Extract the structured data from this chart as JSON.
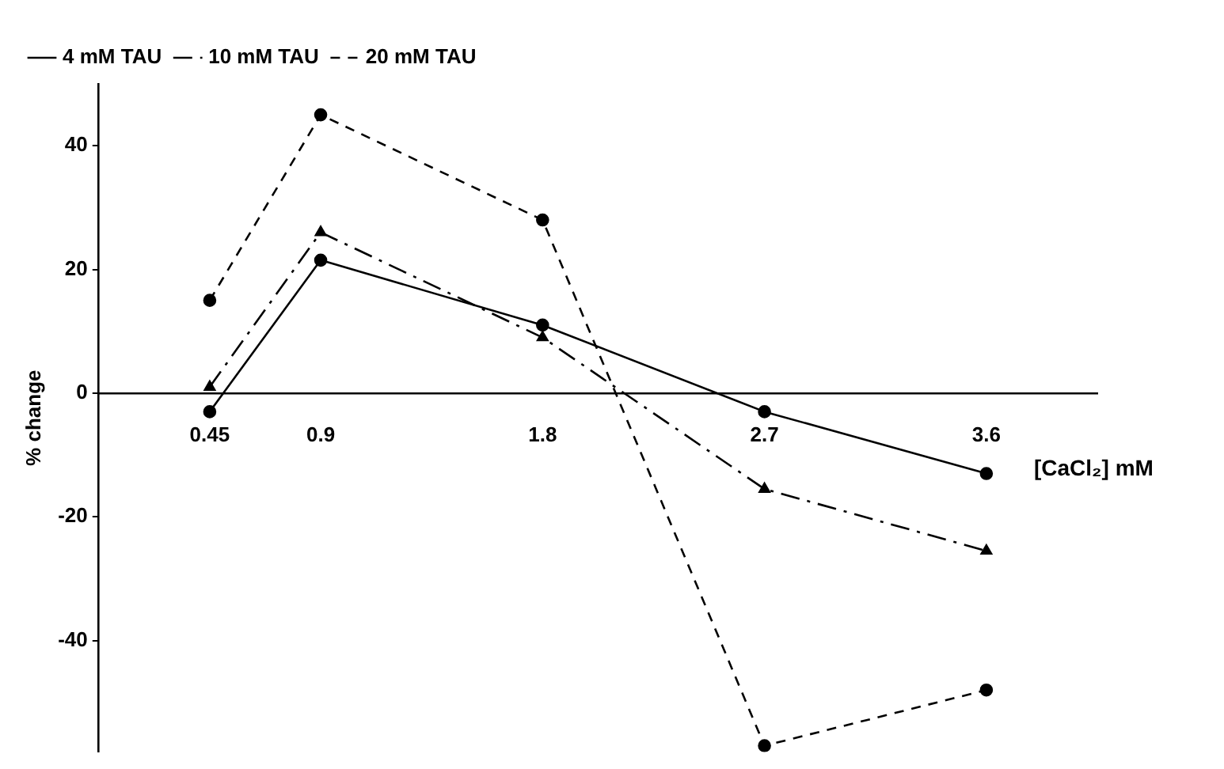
{
  "chart_data": {
    "type": "line",
    "ylabel": "% change",
    "xlabel": "[CaCl₂] mM",
    "x": [
      0.45,
      0.9,
      1.8,
      2.7,
      3.6
    ],
    "series": [
      {
        "name": "4 mM TAU",
        "color": "#000000",
        "marker": "circle",
        "line_style": "solid",
        "values": [
          -3,
          21.5,
          11,
          -3,
          -13
        ]
      },
      {
        "name": "10 mM TAU",
        "color": "#000000",
        "marker": "triangle",
        "line_style": "dashdot",
        "values": [
          1,
          26,
          9,
          -15.5,
          -25.5
        ]
      },
      {
        "name": "20 mM TAU",
        "color": "#000000",
        "marker": "circle",
        "line_style": "dashed",
        "values": [
          15,
          45,
          28,
          -57,
          -48
        ]
      }
    ],
    "xlim": [
      0,
      4.05
    ],
    "xticks": [
      0.45,
      0.9,
      1.8,
      2.7,
      3.6
    ],
    "ylim": [
      -58,
      50
    ],
    "yticks": [
      -40,
      -20,
      0,
      20,
      40
    ],
    "grid": false,
    "legend": "top left"
  }
}
